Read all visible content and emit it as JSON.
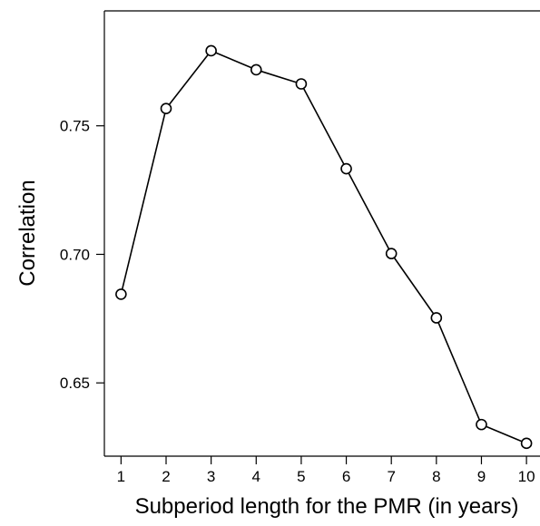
{
  "chart_data": {
    "type": "line",
    "title": "",
    "xlabel": "Subperiod length for the PMR (in years)",
    "ylabel": "Correlation",
    "x": [
      1,
      2,
      3,
      4,
      5,
      6,
      7,
      8,
      9,
      10
    ],
    "series": [
      {
        "values": [
          0.6845,
          0.7567,
          0.7792,
          0.7718,
          0.7663,
          0.7333,
          0.7003,
          0.6753,
          0.6338,
          0.6265
        ]
      }
    ],
    "x_ticks": [
      "1",
      "2",
      "3",
      "4",
      "5",
      "6",
      "7",
      "8",
      "9",
      "10"
    ],
    "y_ticks": [
      "0.65",
      "0.70",
      "0.75"
    ],
    "xlim": [
      0.63,
      10.3
    ],
    "ylim": [
      0.6215,
      0.7947
    ],
    "grid": false,
    "legend": "none",
    "marker": "open-circle",
    "line_color": "#000000"
  }
}
